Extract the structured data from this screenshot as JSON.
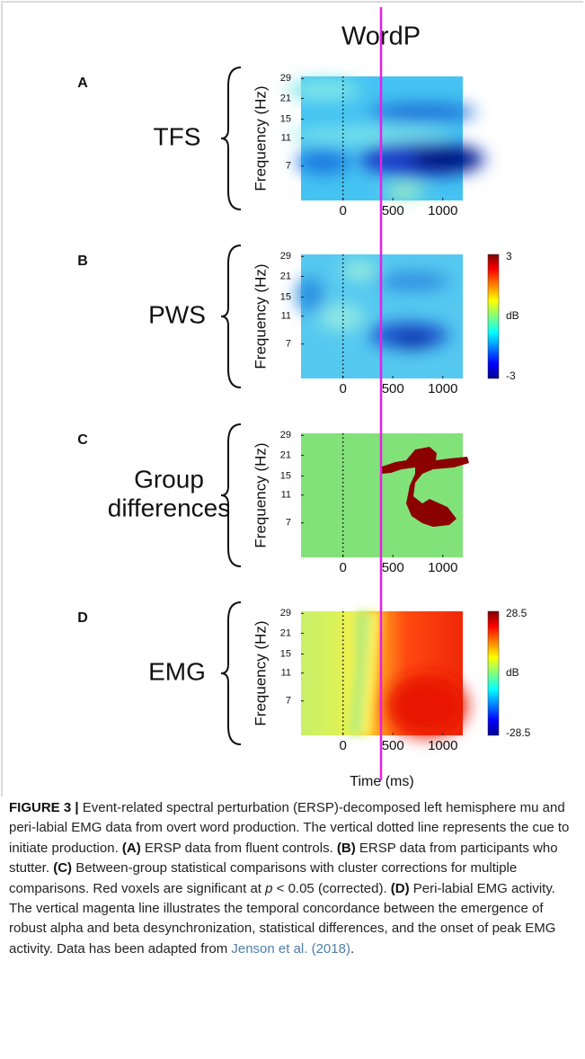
{
  "figure": {
    "header": "WordP",
    "ylabel": "Frequency (Hz)",
    "xlabel": "Time (ms)",
    "yticks": [
      29,
      21,
      15,
      11,
      7
    ],
    "ylim": [
      4,
      30
    ],
    "yscale": "log",
    "xticks": [
      0,
      500,
      1000
    ],
    "xlim": [
      -420,
      1200
    ],
    "panels": [
      {
        "letter": "A",
        "name": [
          "TFS"
        ]
      },
      {
        "letter": "B",
        "name": [
          "PWS"
        ],
        "colorbar": {
          "ticks": [
            3,
            -3
          ],
          "label": "dB"
        }
      },
      {
        "letter": "C",
        "name": [
          "Group",
          "differences"
        ]
      },
      {
        "letter": "D",
        "name": [
          "EMG"
        ],
        "colorbar": {
          "ticks": [
            28.5,
            -28.5
          ],
          "label": "dB"
        }
      }
    ]
  },
  "caption": {
    "parts": [
      "FIGURE 3 | ",
      "Event-related spectral perturbation (ERSP)-decomposed left hemisphere mu and peri-labial EMG data from overt word production. The vertical dotted line represents the cue to initiate production. ",
      "(A)",
      " ERSP data from fluent controls. ",
      "(B)",
      " ERSP data from participants who stutter. ",
      "(C)",
      " Between-group statistical comparisons with cluster corrections for multiple comparisons. Red voxels are significant at ",
      "p",
      " < 0.05 (corrected). ",
      "(D)",
      " Peri-labial EMG activity. The vertical magenta line illustrates the temporal concordance between the emergence of robust alpha and beta desynchronization, statistical differences, and the onset of peak EMG activity. Data has been adapted from ",
      "Jenson et al. (2018)",
      "."
    ]
  }
}
